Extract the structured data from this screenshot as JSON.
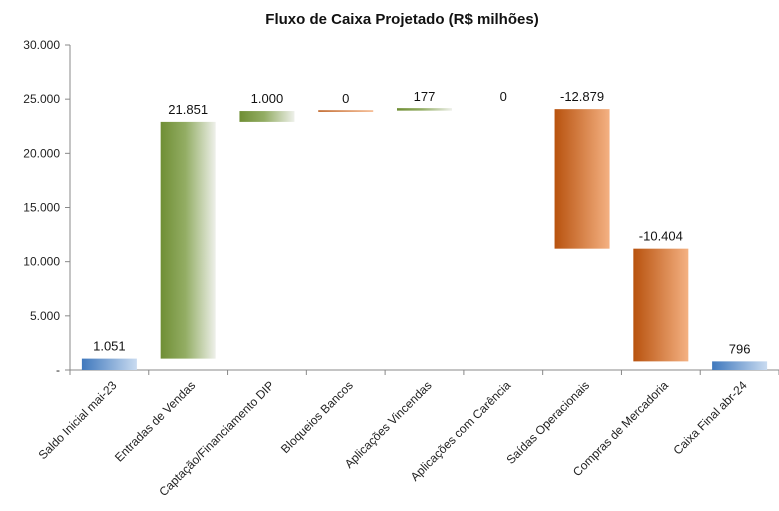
{
  "chart_data": {
    "type": "bar",
    "subtype": "waterfall",
    "title": "Fluxo de Caixa Projetado (R$ milhões)",
    "xlabel": "",
    "ylabel": "",
    "ylim": [
      0,
      30000
    ],
    "yticks": [
      0,
      5000,
      10000,
      15000,
      20000,
      25000,
      30000
    ],
    "ytick_labels": [
      "-",
      "5.000",
      "10.000",
      "15.000",
      "20.000",
      "25.000",
      "30.000"
    ],
    "grid": false,
    "legend": "none",
    "categories": [
      "Saldo Inicial mai-23",
      "Entradas de Vendas",
      "Captação/Financiamento DIP",
      "Bloqueios Bancos",
      "Aplicações Vincendas",
      "Aplicações com Carência",
      "Saídas Operacionais",
      "Compras de Mercadoria",
      "Caixa Final abr-24"
    ],
    "values": [
      1051,
      21851,
      1000,
      0,
      177,
      0,
      -12879,
      -10404,
      796
    ],
    "value_labels": [
      "1.051",
      "21.851",
      "1.000",
      "0",
      "177",
      "0",
      "-12.879",
      "-10.404",
      "796"
    ],
    "bar_kind": [
      "total",
      "increase",
      "increase",
      "increase",
      "increase",
      "increase",
      "decrease",
      "decrease",
      "total"
    ],
    "colors": {
      "total": "#4f86c6",
      "increase": "#77933c",
      "decrease": "#c0580f"
    }
  }
}
